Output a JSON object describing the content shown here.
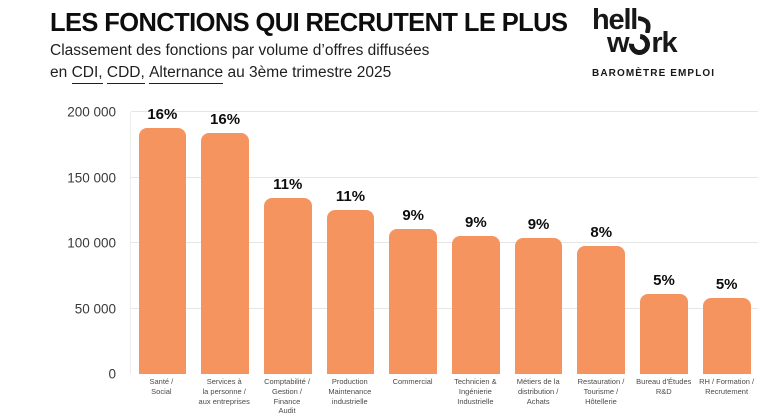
{
  "header": {
    "title": "LES FONCTIONS QUI RECRUTENT LE PLUS",
    "subtitle_line1": "Classement des fonctions par volume d’offres diffusées",
    "subtitle_line2_prefix": "en",
    "underlined_terms": [
      "CDI,",
      "CDD,",
      "Alternance"
    ],
    "subtitle_line2_suffix": "au 3ème trimestre 2025"
  },
  "logo": {
    "full_name": "hellowork",
    "word_top": "hell",
    "word_bottom_start": "w",
    "word_bottom_end": "rk",
    "tagline": "BAROMÈTRE EMPLOI"
  },
  "chart_data": {
    "type": "bar",
    "title": "LES FONCTIONS QUI RECRUTENT LE PLUS",
    "categories": [
      "Santé / Social",
      "Services à la personne / aux entreprises",
      "Comptabilité / Gestion / Finance Audit",
      "Production Maintenance industrielle",
      "Commercial",
      "Technicien & Ingénierie Industrielle",
      "Métiers de la distribution / Achats",
      "Restauration / Tourisme / Hôtellerie",
      "Bureau d'Études R&D",
      "RH / Formation / Recrutement"
    ],
    "category_display_lines": [
      [
        "Santé /",
        "Social"
      ],
      [
        "Services à",
        "la personne /",
        "aux entreprises"
      ],
      [
        "Comptabilité /",
        "Gestion /",
        "Finance",
        "Audit"
      ],
      [
        "Production",
        "Maintenance",
        "industrielle"
      ],
      [
        "Commercial"
      ],
      [
        "Technicien &",
        "Ingénierie",
        "Industrielle"
      ],
      [
        "Métiers de la",
        "distribution /",
        "Achats"
      ],
      [
        "Restauration /",
        "Tourisme /",
        "Hôtellerie"
      ],
      [
        "Bureau d'Études",
        "R&D"
      ],
      [
        "RH / Formation /",
        "Recrutement"
      ]
    ],
    "values": [
      188000,
      184000,
      134000,
      125000,
      110500,
      105000,
      104000,
      97500,
      61000,
      58000
    ],
    "bar_labels": [
      "16%",
      "16%",
      "11%",
      "11%",
      "9%",
      "9%",
      "9%",
      "8%",
      "5%",
      "5%"
    ],
    "y_ticks": [
      0,
      50000,
      100000,
      150000,
      200000
    ],
    "y_tick_labels": [
      "0",
      "50 000",
      "100 000",
      "150 000",
      "200 000"
    ],
    "ylim": [
      0,
      200000
    ],
    "xlabel": "",
    "ylabel": "",
    "grid": true,
    "legend": false,
    "bar_color": "#F6945F",
    "label_color": "#0d0d0d",
    "gridline_color": "#e6e6e6",
    "tick_color": "#3a3a3a",
    "category_color": "#4a4a4a"
  }
}
